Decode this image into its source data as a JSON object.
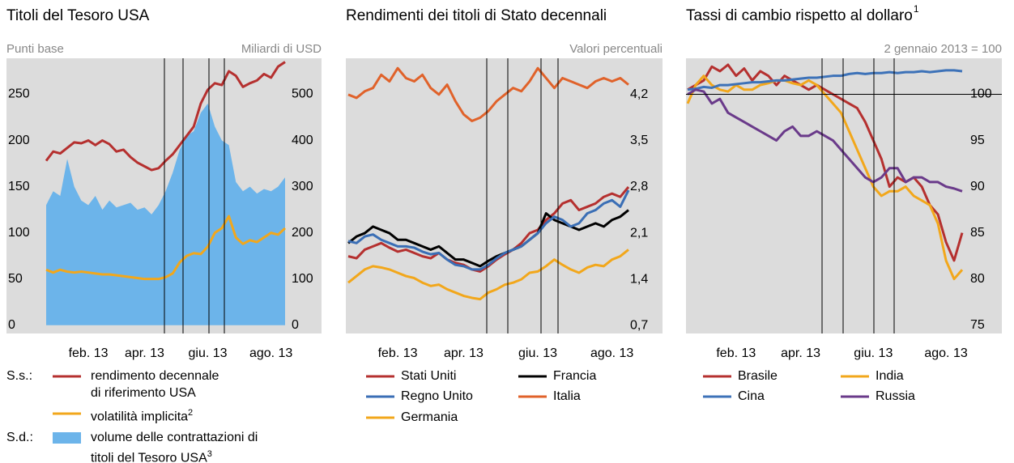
{
  "chart_data": [
    {
      "type": "line",
      "title": "Titoli del Tesoro USA",
      "y_label": "Punti base",
      "y2_label": "Miliardi di USD",
      "legend_labels": [
        "S.s.:",
        "S.d.:"
      ],
      "categories": [
        null,
        null,
        null,
        null,
        null,
        null,
        "feb. 13",
        null,
        null,
        null,
        null,
        null,
        null,
        null,
        "apr. 13",
        null,
        null,
        null,
        null,
        null,
        null,
        null,
        null,
        "giu. 13",
        null,
        null,
        null,
        null,
        null,
        null,
        null,
        null,
        "ago. 13",
        null,
        null
      ],
      "ylim": [
        -9,
        289
      ],
      "yticks": [
        0,
        50,
        100,
        150,
        200,
        250
      ],
      "y2lim": [
        -18,
        578
      ],
      "y2ticks": [
        0,
        100,
        200,
        300,
        400,
        500
      ],
      "series": [
        {
          "name": "rendimento decennale di riferimento USA",
          "color": "#b5302f",
          "values": [
            178,
            188,
            186,
            192,
            198,
            197,
            200,
            195,
            200,
            196,
            188,
            190,
            182,
            176,
            172,
            168,
            170,
            178,
            185,
            195,
            205,
            215,
            240,
            255,
            262,
            260,
            275,
            270,
            258,
            262,
            265,
            272,
            268,
            280,
            285
          ]
        },
        {
          "name": "volatilità implicita",
          "note": "2",
          "color": "#f2a71b",
          "values": [
            60,
            57,
            60,
            58,
            57,
            58,
            57,
            56,
            55,
            55,
            54,
            53,
            52,
            51,
            50,
            50,
            50,
            52,
            56,
            68,
            75,
            78,
            77,
            85,
            100,
            105,
            118,
            95,
            88,
            92,
            90,
            95,
            100,
            98,
            105
          ]
        },
        {
          "name": "volume delle contrattazioni di titoli del Tesoro USA",
          "note": "3",
          "color": "#6cb4ea",
          "type": "area",
          "axis": "y2",
          "values": [
            260,
            290,
            280,
            360,
            300,
            270,
            260,
            280,
            250,
            270,
            255,
            260,
            265,
            250,
            255,
            240,
            260,
            290,
            330,
            380,
            410,
            420,
            460,
            480,
            430,
            400,
            390,
            310,
            290,
            300,
            285,
            295,
            290,
            300,
            320
          ]
        }
      ]
    },
    {
      "type": "line",
      "title": "Rendimenti dei titoli di Stato decennali",
      "y_label": "Valori percentuali",
      "categories": [
        null,
        null,
        null,
        null,
        null,
        null,
        "feb. 13",
        null,
        null,
        null,
        null,
        null,
        null,
        null,
        "apr. 13",
        null,
        null,
        null,
        null,
        null,
        null,
        null,
        null,
        "giu. 13",
        null,
        null,
        null,
        null,
        null,
        null,
        null,
        null,
        "ago. 13",
        null,
        null
      ],
      "ylim": [
        0.58,
        4.75
      ],
      "yticks": [
        {
          "value": 0.7,
          "label": "0,7"
        },
        {
          "value": 1.4,
          "label": "1,4"
        },
        {
          "value": 2.1,
          "label": "2,1"
        },
        {
          "value": 2.8,
          "label": "2,8"
        },
        {
          "value": 3.5,
          "label": "3,5"
        },
        {
          "value": 4.2,
          "label": "4,2"
        }
      ],
      "series": [
        {
          "name": "Stati Uniti",
          "color": "#b5302f",
          "values": [
            1.75,
            1.72,
            1.85,
            1.9,
            1.95,
            1.88,
            1.82,
            1.85,
            1.8,
            1.75,
            1.72,
            1.8,
            1.7,
            1.65,
            1.62,
            1.55,
            1.52,
            1.6,
            1.7,
            1.78,
            1.85,
            1.95,
            2.1,
            2.15,
            2.3,
            2.4,
            2.55,
            2.6,
            2.45,
            2.5,
            2.55,
            2.65,
            2.7,
            2.65,
            2.8
          ]
        },
        {
          "name": "Francia",
          "color": "#000000",
          "values": [
            1.95,
            2.05,
            2.1,
            2.2,
            2.15,
            2.1,
            2.0,
            2.0,
            1.95,
            1.9,
            1.85,
            1.9,
            1.8,
            1.7,
            1.7,
            1.65,
            1.6,
            1.68,
            1.75,
            1.8,
            1.85,
            1.9,
            2.0,
            2.1,
            2.4,
            2.3,
            2.25,
            2.2,
            2.15,
            2.2,
            2.25,
            2.2,
            2.3,
            2.35,
            2.45
          ]
        },
        {
          "name": "Regno Unito",
          "color": "#3a6eb5",
          "values": [
            1.98,
            1.95,
            2.05,
            2.08,
            2.0,
            1.95,
            1.9,
            1.9,
            1.88,
            1.82,
            1.78,
            1.8,
            1.7,
            1.62,
            1.6,
            1.55,
            1.55,
            1.62,
            1.72,
            1.8,
            1.85,
            1.9,
            2.0,
            2.1,
            2.25,
            2.35,
            2.3,
            2.2,
            2.25,
            2.4,
            2.45,
            2.55,
            2.6,
            2.5,
            2.75
          ]
        },
        {
          "name": "Italia",
          "color": "#e0622a",
          "values": [
            4.2,
            4.15,
            4.25,
            4.3,
            4.5,
            4.4,
            4.6,
            4.45,
            4.4,
            4.5,
            4.3,
            4.2,
            4.35,
            4.1,
            3.9,
            3.8,
            3.85,
            3.95,
            4.1,
            4.2,
            4.3,
            4.25,
            4.4,
            4.6,
            4.45,
            4.3,
            4.45,
            4.4,
            4.35,
            4.3,
            4.4,
            4.45,
            4.4,
            4.45,
            4.35
          ]
        },
        {
          "name": "Germania",
          "color": "#f2a71b",
          "values": [
            1.35,
            1.45,
            1.55,
            1.6,
            1.58,
            1.55,
            1.5,
            1.45,
            1.42,
            1.35,
            1.3,
            1.32,
            1.25,
            1.2,
            1.15,
            1.12,
            1.1,
            1.2,
            1.25,
            1.32,
            1.35,
            1.4,
            1.5,
            1.52,
            1.6,
            1.7,
            1.62,
            1.55,
            1.5,
            1.58,
            1.62,
            1.6,
            1.7,
            1.75,
            1.85
          ]
        }
      ]
    },
    {
      "type": "line",
      "title": "Tassi di cambio rispetto al dollaro",
      "title_note": "1",
      "y_label": "2 gennaio 2013 = 100",
      "categories": [
        null,
        null,
        null,
        null,
        null,
        null,
        "feb. 13",
        null,
        null,
        null,
        null,
        null,
        null,
        null,
        "apr. 13",
        null,
        null,
        null,
        null,
        null,
        null,
        null,
        null,
        "giu. 13",
        null,
        null,
        null,
        null,
        null,
        null,
        null,
        null,
        "ago. 13",
        null,
        null
      ],
      "ylim": [
        74.1,
        103.9
      ],
      "yticks": [
        75,
        80,
        85,
        90,
        95,
        100
      ],
      "hline": 100,
      "series": [
        {
          "name": "Brasile",
          "color": "#b5302f",
          "values": [
            100.5,
            101,
            101.5,
            103,
            102.5,
            103.2,
            102,
            102.8,
            101.5,
            102.5,
            102,
            101,
            102,
            101.5,
            101,
            100.5,
            101,
            100.5,
            100,
            99.5,
            99,
            98.5,
            97,
            95,
            93,
            90,
            91,
            90.5,
            91,
            90,
            88,
            87,
            84,
            82,
            85
          ]
        },
        {
          "name": "India",
          "color": "#f2a71b",
          "values": [
            99,
            101,
            102,
            101,
            100.5,
            100.3,
            101,
            100.5,
            100.5,
            101,
            101.2,
            101.5,
            101.5,
            101.2,
            101,
            101.5,
            101,
            100,
            99,
            98,
            96,
            94,
            92,
            90,
            89,
            89.5,
            89.5,
            90,
            89,
            88.5,
            88,
            86,
            82,
            80,
            81
          ]
        },
        {
          "name": "Cina",
          "color": "#3d72b8",
          "values": [
            100.5,
            100.6,
            100.8,
            100.7,
            101,
            101,
            101.1,
            101.2,
            101.3,
            101.3,
            101.4,
            101.5,
            101.5,
            101.6,
            101.7,
            101.8,
            101.8,
            101.9,
            102,
            102,
            102.2,
            102.3,
            102.2,
            102.3,
            102.3,
            102.4,
            102.3,
            102.4,
            102.4,
            102.5,
            102.4,
            102.5,
            102.6,
            102.6,
            102.5
          ]
        },
        {
          "name": "Russia",
          "color": "#6a3a8a",
          "values": [
            100,
            100.5,
            100.3,
            99,
            99.5,
            98,
            97.5,
            97,
            96.5,
            96,
            95.5,
            95,
            96,
            96.5,
            95.5,
            95.5,
            96,
            95.5,
            95,
            94,
            93,
            92,
            91,
            90.5,
            91,
            92,
            92,
            90.5,
            91,
            91,
            90.5,
            90.5,
            90,
            89.8,
            89.5
          ]
        }
      ]
    }
  ]
}
